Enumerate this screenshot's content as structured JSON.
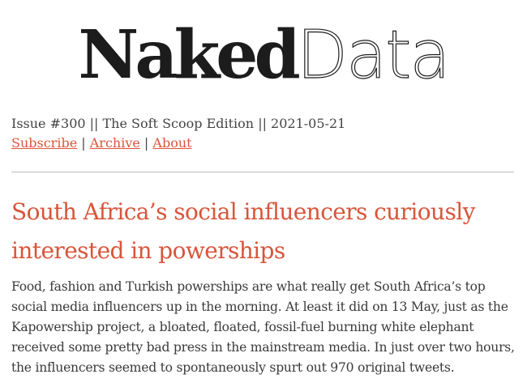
{
  "masthead": {
    "logo_part_1": "Naked",
    "logo_part_2": "Data"
  },
  "issue": {
    "line": "Issue #300 || The Soft Scoop Edition || 2021-05-21"
  },
  "nav": {
    "subscribe": "Subscribe",
    "archive": "Archive",
    "about": "About",
    "separator": "|"
  },
  "article": {
    "headline": "South Africa’s social influencers curiously interested in powerships",
    "body": "Food, fashion and Turkish powerships are what really get South Africa’s top social media influencers up in the morning. At least it did on 13 May, just as the Kapowership project, a bloated, floated, fossil-fuel burning white elephant received some pretty bad press in the mainstream media. In just over two hours, the influencers seemed to spontaneously spurt out 970 original tweets."
  },
  "colors": {
    "accent": "#d8553a",
    "text": "#3a3a3a",
    "logo": "#1c1c1c",
    "divider": "#bdbdbd"
  }
}
